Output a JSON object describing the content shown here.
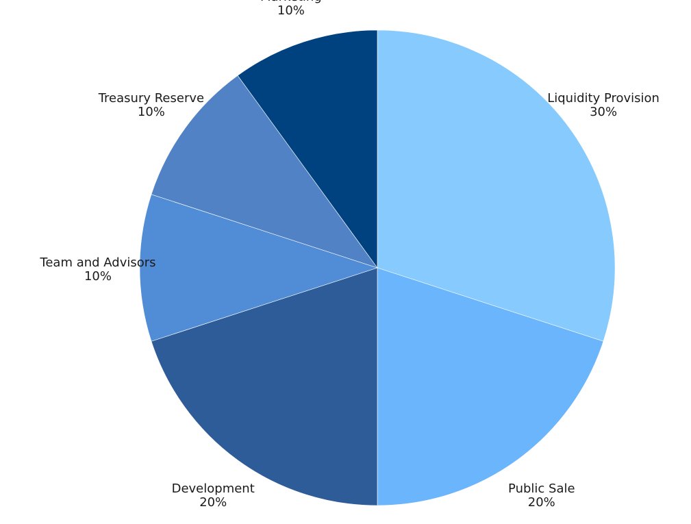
{
  "chart_data": {
    "type": "pie",
    "title": "",
    "start": "12 o'clock",
    "direction": "clockwise",
    "legend": "none",
    "slices": [
      {
        "label": "Liquidity Provision",
        "value": 30,
        "value_label": "30%",
        "color": "#87CAFE"
      },
      {
        "label": "Public Sale",
        "value": 20,
        "value_label": "20%",
        "color": "#6BB5FD"
      },
      {
        "label": "Development",
        "value": 20,
        "value_label": "20%",
        "color": "#2E5C99"
      },
      {
        "label": "Team and Advisors",
        "value": 10,
        "value_label": "10%",
        "color": "#518CD6"
      },
      {
        "label": "Treasury Reserve",
        "value": 10,
        "value_label": "10%",
        "color": "#5082C5"
      },
      {
        "label": "Marketing",
        "value": 10,
        "value_label": "10%",
        "color": "#00427F"
      }
    ]
  }
}
